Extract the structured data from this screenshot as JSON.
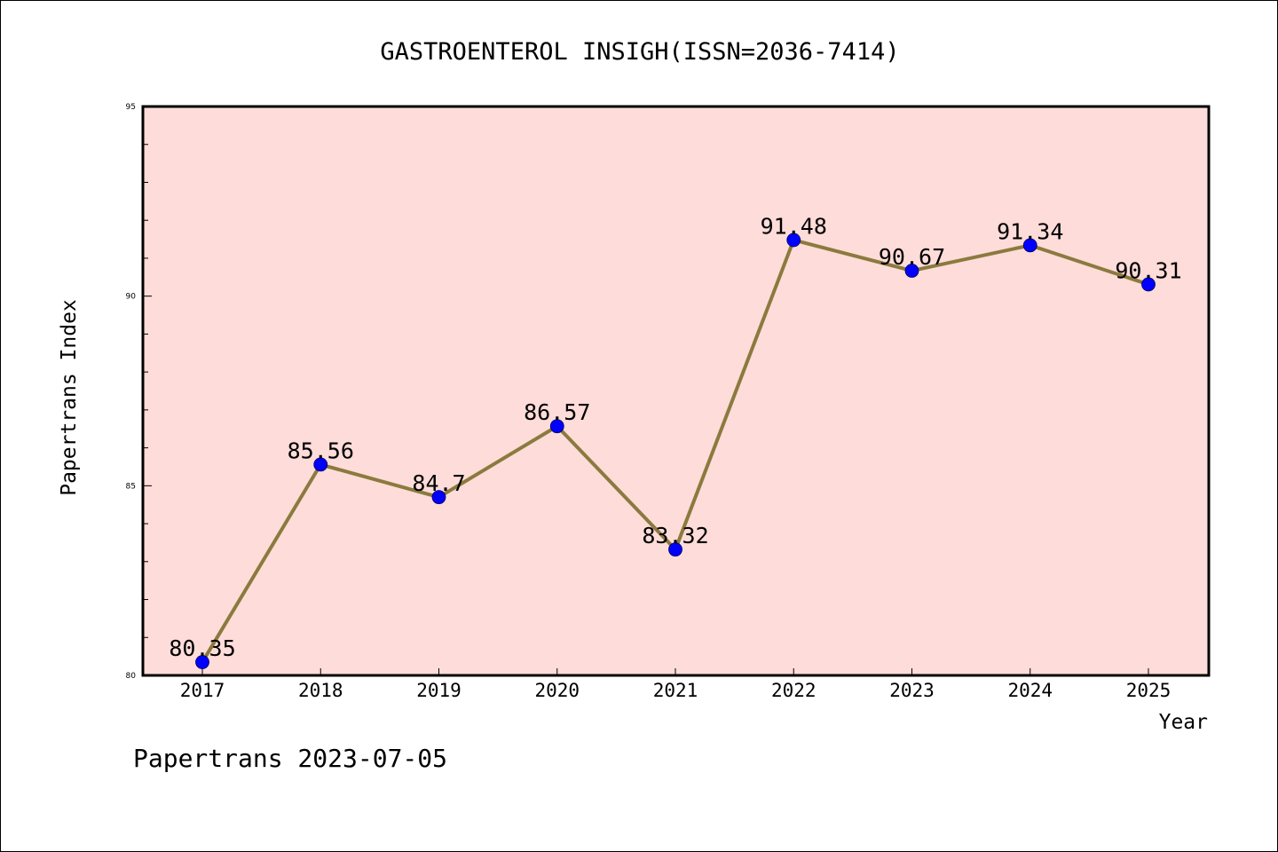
{
  "footer": "Papertrans 2023-07-05",
  "colors": {
    "plot_background": "#fddcd9",
    "line": "#8b7a3e",
    "marker": "#0000ff",
    "axis": "#000000"
  },
  "chart_data": {
    "type": "line",
    "title": "GASTROENTEROL INSIGH(ISSN=2036-7414)",
    "xlabel": "Year",
    "ylabel": "Papertrans Index",
    "categories": [
      "2017",
      "2018",
      "2019",
      "2020",
      "2021",
      "2022",
      "2023",
      "2024",
      "2025"
    ],
    "series": [
      {
        "values": [
          80.35,
          85.56,
          84.7,
          86.57,
          83.32,
          91.48,
          90.67,
          91.34,
          90.31
        ],
        "data_labels": [
          "80.35",
          "85.56",
          "84.7",
          "86.57",
          "83.32",
          "91.48",
          "90.67",
          "91.34",
          "90.31"
        ]
      }
    ],
    "ylim": [
      80,
      95
    ],
    "y_ticks": [
      80,
      85,
      90,
      95
    ],
    "y_tick_labels": [
      "80",
      "85",
      "90",
      "95"
    ],
    "y_minor_step": 1,
    "grid": false,
    "marker": "circle"
  }
}
